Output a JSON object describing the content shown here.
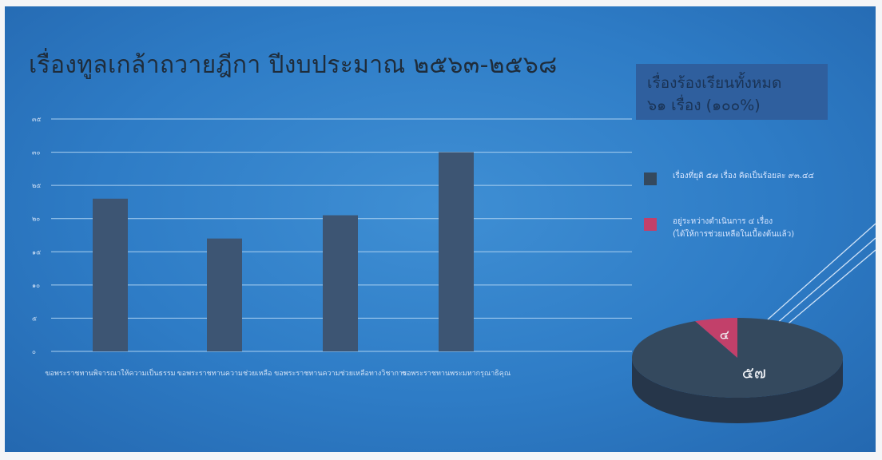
{
  "title": "เรื่องทูลเกล้าถวายฎีกา ปีงบประมาณ ๒๕๖๓-๒๕๖๘",
  "summary_box": {
    "line1": "เรื่องร้องเรียนทั้งหมด",
    "line2": "๖๑ เรื่อง (๑๐๐%)",
    "color": "#2f5f9e"
  },
  "legend": [
    {
      "label_lines": [
        "เรื่องที่ยุติ ๕๗ เรื่อง คิดเป็นร้อยละ ๙๓.๔๔"
      ],
      "color": "#34495e"
    },
    {
      "label_lines": [
        "อยู่ระหว่างดำเนินการ ๔ เรื่อง",
        "(ได้ให้การช่วยเหลือในเบื้องต้นแล้ว)"
      ],
      "color": "#c2406a"
    }
  ],
  "chart_data": [
    {
      "type": "bar",
      "categories": [
        "ขอพระราชทานพิจารณาให้ความเป็นธรรม",
        "ขอพระราชทานความช่วยเหลือ",
        "ขอพระราชทานความช่วยเหลือทางวิชาการ",
        "ขอพระราชทานพระมหากรุณาธิคุณ"
      ],
      "values": [
        23,
        17,
        20.5,
        30
      ],
      "ylim": [
        0,
        35
      ],
      "yticks": [
        0,
        5,
        10,
        15,
        20,
        25,
        30,
        35
      ],
      "ytick_labels": [
        "๐",
        "๕",
        "๑๐",
        "๑๕",
        "๒๐",
        "๒๕",
        "๓๐",
        "๓๕"
      ],
      "grid": true,
      "bar_color": "#3d5573"
    },
    {
      "type": "pie",
      "labels": [
        "เรื่องที่ยุติ",
        "อยู่ระหว่างดำเนินการ"
      ],
      "values": [
        57,
        4
      ],
      "value_labels": [
        "๕๗",
        "๔"
      ],
      "colors": [
        "#34495e",
        "#c2406a"
      ]
    }
  ]
}
